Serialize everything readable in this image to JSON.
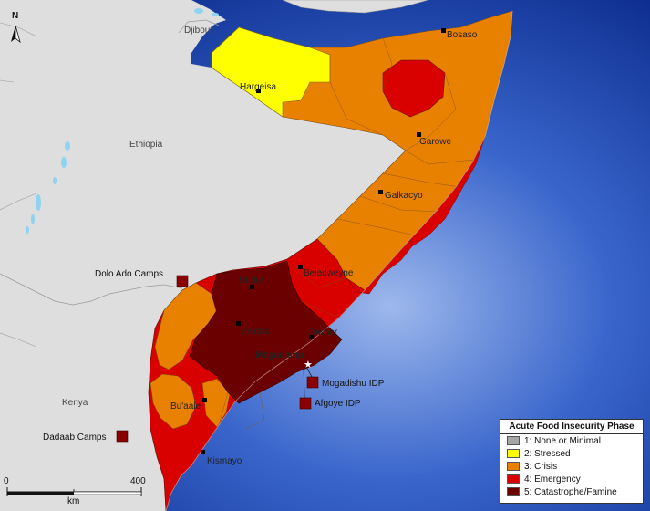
{
  "colors": {
    "ocean_center": "#8fb0e8",
    "ocean_edge": "#0a2a8c",
    "land": "#dedede",
    "phase1": "#a6a6a6",
    "phase2": "#ffff00",
    "phase3": "#e88000",
    "phase4": "#d90000",
    "phase5": "#6b0000",
    "lakes": "#8fd3f0"
  },
  "countries": {
    "djibouti": "Djibouti",
    "ethiopia": "Ethiopia",
    "kenya": "Kenya"
  },
  "cities": [
    {
      "id": "bosaso",
      "name": "Bosaso"
    },
    {
      "id": "hargeisa",
      "name": "Hargeisa"
    },
    {
      "id": "garowe",
      "name": "Garowe"
    },
    {
      "id": "galkacyo",
      "name": "Galkacyo"
    },
    {
      "id": "beledweyne",
      "name": "Beledweyne"
    },
    {
      "id": "hudur",
      "name": "Hudur"
    },
    {
      "id": "baidoa",
      "name": "Baidoa"
    },
    {
      "id": "jowhar",
      "name": "Jowhar"
    },
    {
      "id": "mogadishu",
      "name": "Mogadishu"
    },
    {
      "id": "buaale",
      "name": "Bu'aale"
    },
    {
      "id": "kismayo",
      "name": "Kismayo"
    }
  ],
  "camps": [
    {
      "id": "dolo-ado",
      "name": "Dolo Ado Camps"
    },
    {
      "id": "dadaab",
      "name": "Dadaab Camps"
    },
    {
      "id": "mogadishu-idp",
      "name": "Mogadishu IDP"
    },
    {
      "id": "afgoye-idp",
      "name": "Afgoye IDP"
    }
  ],
  "legend": {
    "title": "Acute Food Insecurity Phase",
    "items": [
      {
        "label": "1: None or Minimal",
        "color": "#a6a6a6"
      },
      {
        "label": "2: Stressed",
        "color": "#ffff00"
      },
      {
        "label": "3: Crisis",
        "color": "#e88000"
      },
      {
        "label": "4: Emergency",
        "color": "#d90000"
      },
      {
        "label": "5: Catastrophe/Famine",
        "color": "#6b0000"
      }
    ]
  },
  "scalebar": {
    "start": "0",
    "end": "400",
    "unit": "km"
  },
  "north_arrow": {
    "label": "N"
  }
}
